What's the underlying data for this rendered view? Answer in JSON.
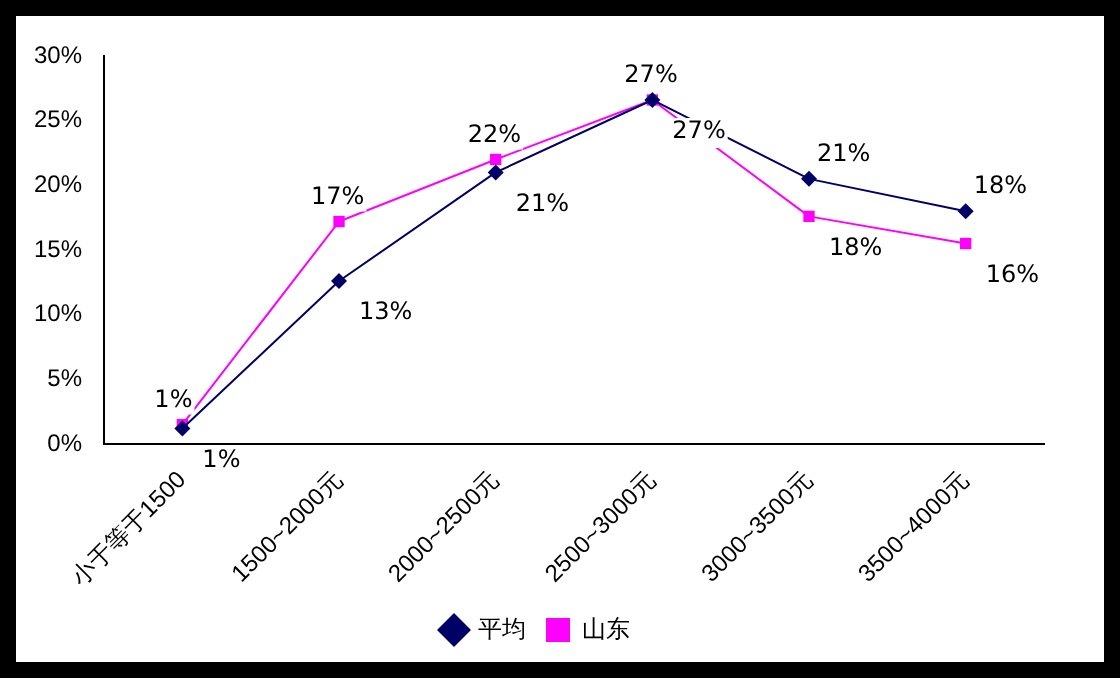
{
  "chart_data": {
    "type": "line",
    "categories": [
      "小于等于1500",
      "1500~2000元",
      "2000~2500元",
      "2500~3000元",
      "3000~3500元",
      "3500~4000元"
    ],
    "series": [
      {
        "name": "平均",
        "color": "#000066",
        "marker": "diamond",
        "values": [
          1.2,
          12.6,
          21,
          26.6,
          20.5,
          18
        ],
        "value_labels": [
          "1%",
          "13%",
          "21%",
          "27%",
          "21%",
          "18%"
        ]
      },
      {
        "name": "山东",
        "color": "#ff00ff",
        "marker": "square",
        "values": [
          1.5,
          17.2,
          22,
          26.6,
          17.6,
          15.5
        ],
        "value_labels": [
          "1%",
          "17%",
          "22%",
          "27%",
          "18%",
          "16%"
        ]
      }
    ],
    "ylim": [
      0,
      30
    ],
    "yticks": [
      {
        "value": 0,
        "label": "0%"
      },
      {
        "value": 5,
        "label": "5%"
      },
      {
        "value": 10,
        "label": "10%"
      },
      {
        "value": 15,
        "label": "15%"
      },
      {
        "value": 20,
        "label": "20%"
      },
      {
        "value": 25,
        "label": "25%"
      },
      {
        "value": 30,
        "label": "30%"
      }
    ],
    "grid": false,
    "legend": "bottom"
  }
}
